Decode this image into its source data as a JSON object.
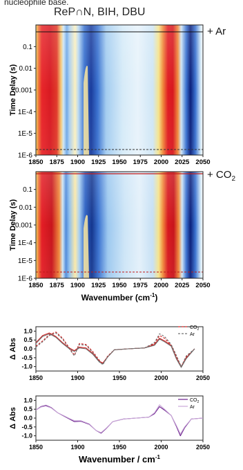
{
  "caption_fragment": "nucleophile base.",
  "header_text": "ReP∩N, BIH, DBU",
  "colors": {
    "red": "#e8202a",
    "dark_red": "#b0181e",
    "purple": "#6a1e8c",
    "light_purple": "#c9a8d8",
    "gray_dash": "#707070"
  },
  "chart_data": [
    {
      "type": "heatmap",
      "panel": "top",
      "condition_label": "+ Ar",
      "ylabel": "Time Delay (s)",
      "y_ticks": [
        "0.1",
        "0.01",
        "0.001",
        "1E-4",
        "1E-5",
        "1E-6"
      ],
      "x_ticks": [
        "1850",
        "1875",
        "1900",
        "1925",
        "1950",
        "1975",
        "2000",
        "2025",
        "2050"
      ],
      "xlim": [
        1850,
        2050
      ],
      "y_scale": "log",
      "ylim": [
        1e-06,
        1
      ],
      "bands": [
        {
          "center": 1865,
          "width": 20,
          "sign": "positive"
        },
        {
          "center": 1890,
          "width": 8,
          "sign": "negative"
        },
        {
          "center": 1908,
          "width": 6,
          "sign": "positive"
        },
        {
          "center": 1930,
          "width": 10,
          "sign": "negative"
        },
        {
          "center": 1955,
          "width": 22,
          "sign": "weak_negative"
        },
        {
          "center": 2005,
          "width": 14,
          "sign": "positive"
        },
        {
          "center": 2025,
          "width": 8,
          "sign": "negative"
        }
      ],
      "solid_line_delay": 0.5,
      "dashed_line_delay": 1.5e-06,
      "line_color": "black"
    },
    {
      "type": "heatmap",
      "panel": "middle",
      "condition_label": "+ CO",
      "condition_subscript": "2",
      "ylabel": "Time Delay (s)",
      "xlabel": "Wavenumber (cm",
      "xlabel_sup": "-1",
      "xlabel_end": ")",
      "y_ticks": [
        "0.1",
        "0.01",
        "0.001",
        "1E-4",
        "1E-5",
        "1E-6"
      ],
      "x_ticks": [
        "1850",
        "1875",
        "1900",
        "1925",
        "1950",
        "1975",
        "2000",
        "2025",
        "2050"
      ],
      "xlim": [
        1850,
        2050
      ],
      "y_scale": "log",
      "ylim": [
        1e-06,
        1
      ],
      "solid_line_delay": 0.5,
      "dashed_line_delay": 1.5e-06,
      "line_color": "red"
    },
    {
      "type": "line",
      "panel": "spectra_1",
      "ylabel": "Δ Abs",
      "xlim": [
        1850,
        2050
      ],
      "ylim": [
        -1.25,
        1.25
      ],
      "y_ticks": [
        "1.0",
        "0.5",
        "0.0",
        "-0.5",
        "-1.0"
      ],
      "x_ticks": [
        "1850",
        "1900",
        "1950",
        "2000",
        "2050"
      ],
      "legend": {
        "placement": "top-right"
      },
      "series": [
        {
          "name": "CO",
          "name_sub": "2",
          "color": "#d42020",
          "style": "solid",
          "x": [
            1850,
            1858,
            1866,
            1874,
            1882,
            1890,
            1896,
            1902,
            1910,
            1918,
            1926,
            1930,
            1936,
            1944,
            1960,
            1980,
            1992,
            1998,
            2004,
            2012,
            2018,
            2024,
            2030,
            2040
          ],
          "y": [
            0.35,
            0.75,
            0.9,
            0.7,
            0.35,
            0.05,
            -0.1,
            0.1,
            0.05,
            -0.25,
            -0.7,
            -0.8,
            -0.45,
            -0.05,
            0.0,
            0.05,
            0.25,
            0.6,
            0.45,
            0.2,
            -0.5,
            -1.0,
            -0.5,
            0.0
          ]
        },
        {
          "name": "CO",
          "name_sub": "2",
          "color": "#d42020",
          "style": "dashed",
          "x": [
            1850,
            1858,
            1866,
            1874,
            1882,
            1890,
            1896,
            1902,
            1910,
            1918,
            1926,
            1930,
            1936,
            1944,
            1960,
            1980,
            1992,
            1998,
            2004,
            2012,
            2018,
            2024,
            2030,
            2040
          ],
          "y": [
            0.15,
            0.45,
            0.8,
            0.95,
            0.6,
            0.05,
            -0.35,
            0.3,
            0.25,
            -0.15,
            -0.65,
            -0.85,
            -0.4,
            -0.05,
            0.0,
            0.05,
            0.3,
            0.75,
            0.6,
            0.2,
            -0.4,
            -1.0,
            -0.45,
            0.0
          ]
        },
        {
          "name": "Ar",
          "color": "#707070",
          "style": "solid",
          "x": [
            1850,
            1858,
            1866,
            1874,
            1882,
            1890,
            1896,
            1902,
            1910,
            1918,
            1926,
            1930,
            1936,
            1944,
            1960,
            1980,
            1992,
            1998,
            2004,
            2012,
            2018,
            2024,
            2030,
            2040
          ],
          "y": [
            0.3,
            0.7,
            0.85,
            0.65,
            0.3,
            0.0,
            -0.15,
            0.05,
            0.0,
            -0.3,
            -0.75,
            -0.85,
            -0.45,
            -0.05,
            0.0,
            0.05,
            0.2,
            0.55,
            0.4,
            0.15,
            -0.55,
            -1.05,
            -0.55,
            0.0
          ]
        },
        {
          "name": "Ar",
          "color": "#707070",
          "style": "dashed",
          "x": [
            1850,
            1858,
            1866,
            1874,
            1882,
            1890,
            1896,
            1902,
            1910,
            1918,
            1926,
            1930,
            1936,
            1944,
            1960,
            1980,
            1992,
            1998,
            2004,
            2012,
            2018,
            2024,
            2030,
            2040
          ],
          "y": [
            0.1,
            0.4,
            0.75,
            0.9,
            0.55,
            0.0,
            -0.4,
            0.25,
            0.2,
            -0.2,
            -0.7,
            -0.9,
            -0.45,
            -0.05,
            0.0,
            0.05,
            0.35,
            0.85,
            0.7,
            0.25,
            -0.35,
            -1.0,
            -0.4,
            0.0
          ]
        }
      ]
    },
    {
      "type": "line",
      "panel": "spectra_2",
      "ylabel": "Δ Abs",
      "xlabel": "Wavenumber / cm",
      "xlabel_sup": "-1",
      "xlim": [
        1850,
        2050
      ],
      "ylim": [
        -1.25,
        1.25
      ],
      "y_ticks": [
        "1.0",
        "0.5",
        "0.0",
        "-0.5",
        "-1.0"
      ],
      "x_ticks": [
        "1850",
        "1900",
        "1950",
        "2000",
        "2050"
      ],
      "legend": {
        "placement": "top-right"
      },
      "series": [
        {
          "name": "CO",
          "name_sub": "2",
          "color": "#6a1e8c",
          "style": "solid",
          "x": [
            1850,
            1856,
            1862,
            1868,
            1876,
            1884,
            1890,
            1896,
            1904,
            1914,
            1922,
            1928,
            1934,
            1942,
            1955,
            1970,
            1985,
            1992,
            1998,
            2004,
            2012,
            2018,
            2023,
            2028,
            2036,
            2050
          ],
          "y": [
            0.45,
            0.65,
            0.72,
            0.6,
            0.3,
            0.1,
            -0.05,
            -0.2,
            -0.18,
            -0.35,
            -0.7,
            -0.85,
            -0.6,
            -0.2,
            -0.05,
            0.0,
            0.05,
            0.25,
            0.65,
            0.45,
            0.15,
            -0.45,
            -1.0,
            -0.55,
            -0.05,
            0.0
          ]
        },
        {
          "name": "Ar",
          "color": "#c9a8d8",
          "style": "solid",
          "x": [
            1850,
            1856,
            1862,
            1868,
            1876,
            1884,
            1890,
            1896,
            1904,
            1914,
            1922,
            1928,
            1934,
            1942,
            1955,
            1970,
            1985,
            1992,
            1998,
            2004,
            2012,
            2018,
            2023,
            2028,
            2036,
            2050
          ],
          "y": [
            0.45,
            0.62,
            0.68,
            0.58,
            0.3,
            0.12,
            -0.02,
            -0.15,
            -0.15,
            -0.33,
            -0.7,
            -0.82,
            -0.58,
            -0.2,
            -0.05,
            0.0,
            0.05,
            0.3,
            0.75,
            0.5,
            0.15,
            -0.4,
            -0.9,
            -0.5,
            -0.05,
            0.0
          ]
        }
      ]
    }
  ]
}
